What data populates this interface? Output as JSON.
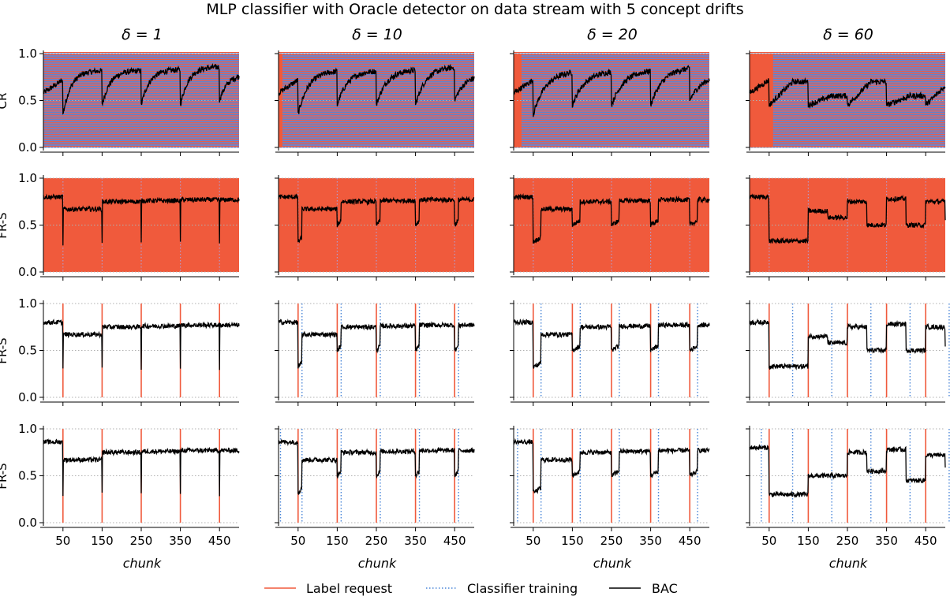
{
  "chart_data": {
    "type": "line",
    "title": "MLP classifier with Oracle detector on data stream with 5 concept drifts",
    "column_titles": [
      "δ = 1",
      "δ = 10",
      "δ = 20",
      "δ = 60"
    ],
    "deltas": [
      1,
      10,
      20,
      60
    ],
    "xlabel": "chunk",
    "xlim": [
      0,
      500
    ],
    "ylim": [
      0,
      1
    ],
    "xticks": [
      50,
      150,
      250,
      350,
      450
    ],
    "yticks": [
      0.0,
      0.5,
      1.0
    ],
    "ytick_labels": [
      "0.0",
      "0.5",
      "1.0"
    ],
    "drifts": [
      50,
      150,
      250,
      350,
      450
    ],
    "row_labels": [
      "CR",
      "FR-S",
      "FR-S",
      "FR-S"
    ],
    "legend": {
      "position": "bottom-center",
      "entries": [
        {
          "label": "Label request",
          "color": "#f05a3c",
          "style": "solid"
        },
        {
          "label": "Classifier training",
          "color": "#4a86d8",
          "style": "dotted"
        },
        {
          "label": "BAC",
          "color": "#000000",
          "style": "solid"
        }
      ]
    },
    "series_levels": {
      "row1": [
        [
          0,
          0.62
        ],
        [
          50,
          0.35
        ],
        [
          100,
          0.78
        ],
        [
          150,
          0.45
        ],
        [
          200,
          0.78
        ],
        [
          250,
          0.45
        ],
        [
          300,
          0.8
        ],
        [
          350,
          0.45
        ],
        [
          400,
          0.82
        ],
        [
          450,
          0.5
        ],
        [
          500,
          0.76
        ]
      ],
      "row2_to_4_after_drift": [
        0.67,
        0.75,
        0.76,
        0.77,
        0.77
      ],
      "initial": 0.8
    }
  },
  "colors": {
    "label_request": "#f05a3c",
    "classifier_training": "#4a86d8",
    "bac": "#000000",
    "grid": "#b0b0b0"
  }
}
